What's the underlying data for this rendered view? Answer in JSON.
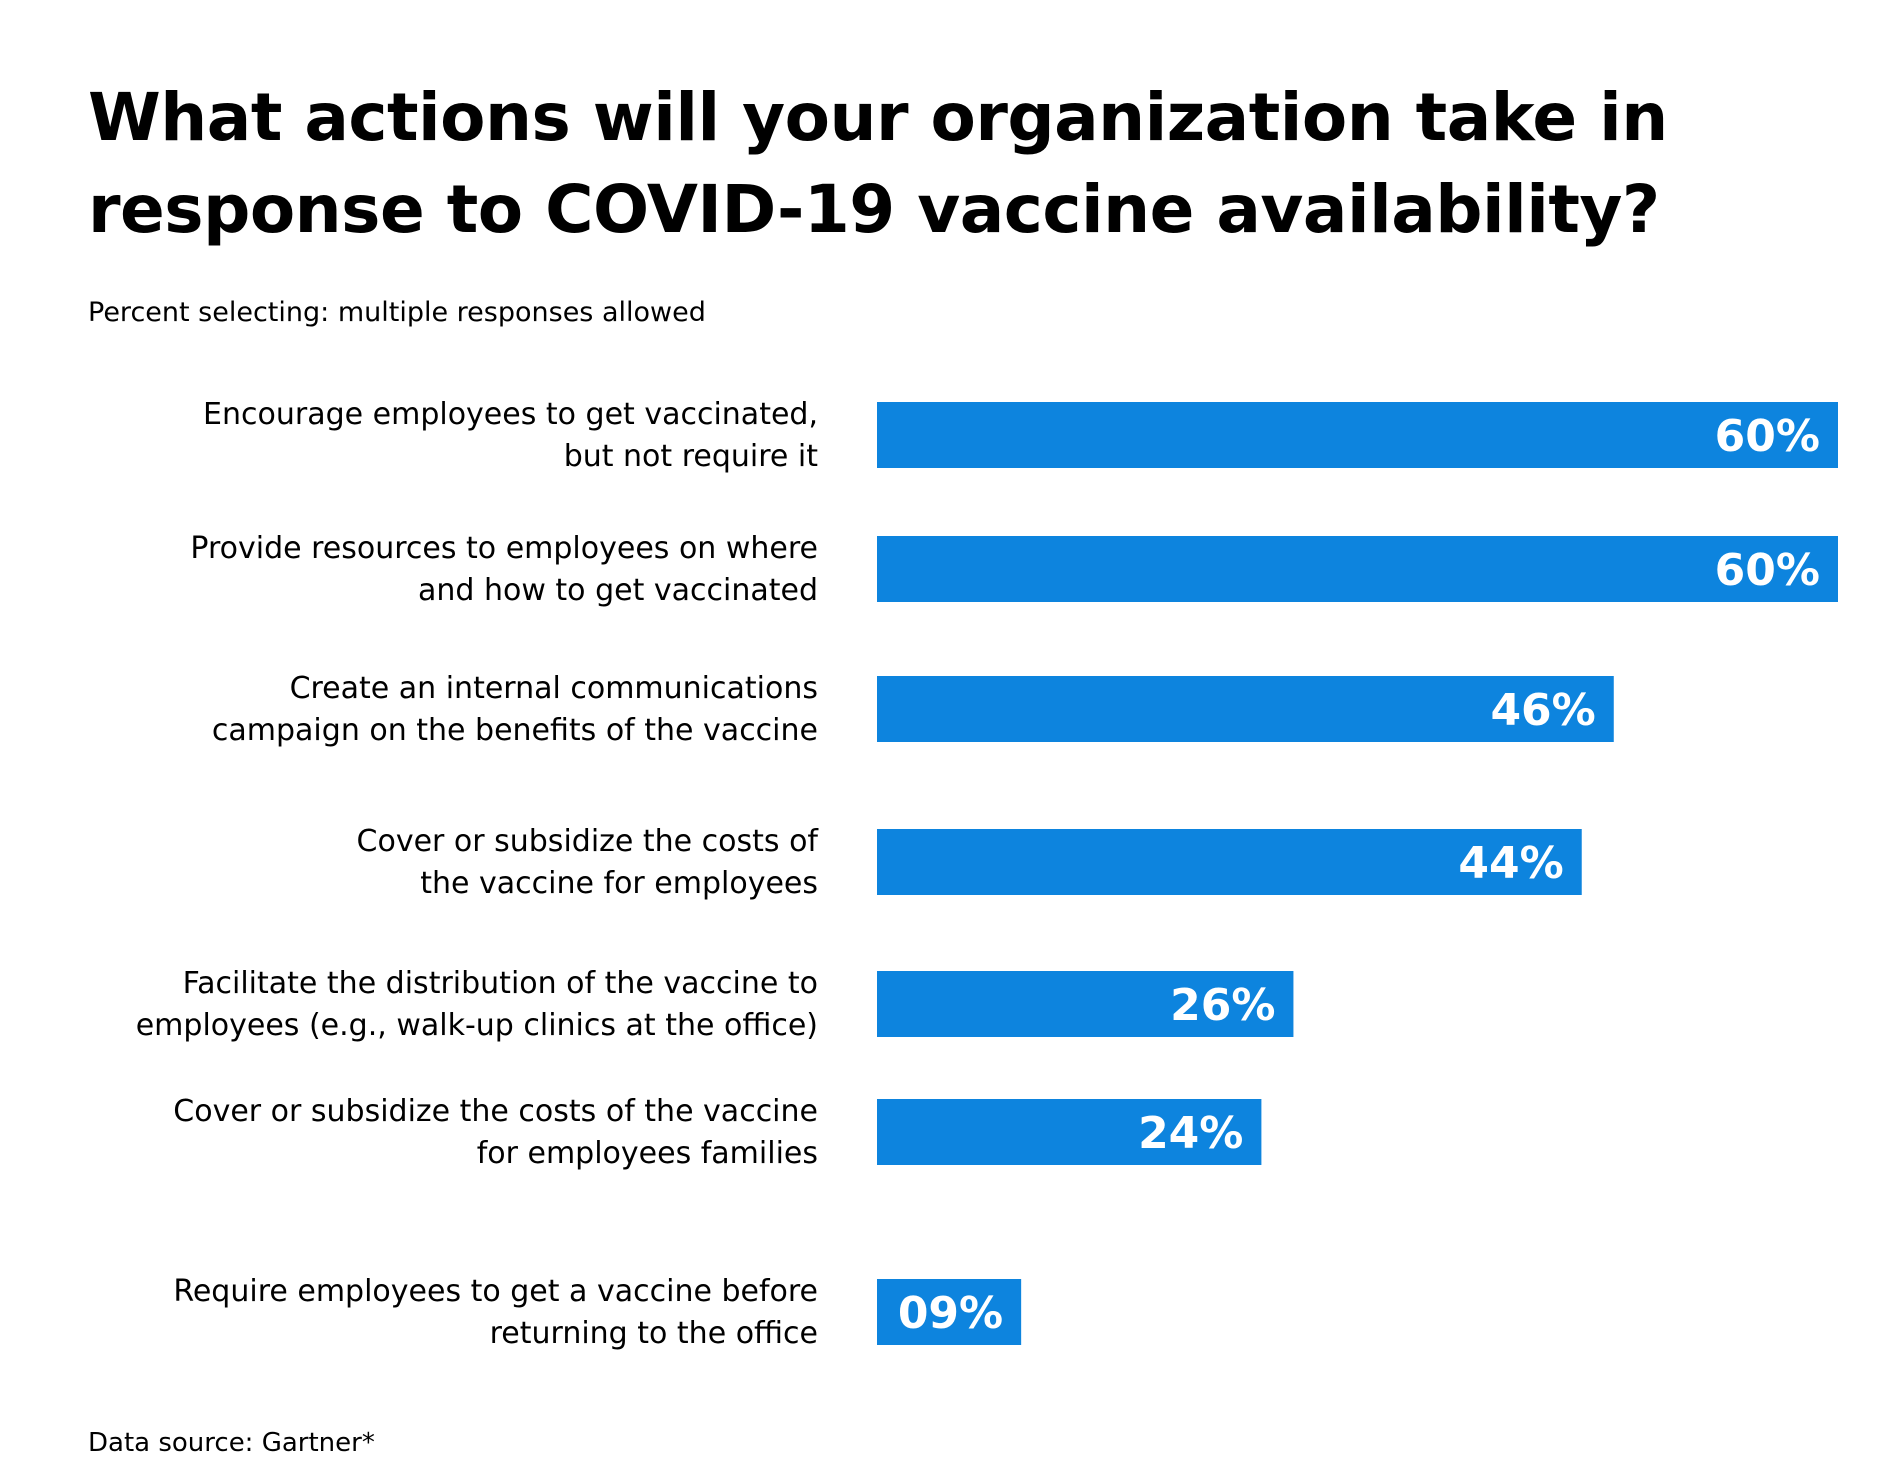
{
  "chart_data": {
    "type": "bar",
    "orientation": "horizontal",
    "title": "What actions will your organization take in response to COVID-19 vaccine availability?",
    "subtitle": "Percent selecting: multiple responses allowed",
    "source": "Data source: Gartner*",
    "categories": [
      [
        "Encourage employees to get vaccinated,",
        "but not require it"
      ],
      [
        "Provide resources to employees on where",
        "and how to get vaccinated"
      ],
      [
        "Create an internal communications",
        "campaign on the benefits of the vaccine"
      ],
      [
        "Cover or subsidize the costs of",
        "the vaccine for employees"
      ],
      [
        "Facilitate the distribution of the vaccine to",
        "employees (e.g., walk-up clinics at the office)"
      ],
      [
        "Cover or subsidize the costs of the vaccine",
        "for employees families"
      ],
      [
        "Require employees to get a vaccine before",
        "returning to the office"
      ]
    ],
    "values": [
      60,
      60,
      46,
      44,
      26,
      24,
      9
    ],
    "value_labels": [
      "60%",
      "60%",
      "46%",
      "44%",
      "26%",
      "24%",
      "09%"
    ],
    "bar_color": "#0d84de",
    "value_label_color": "#ffffff",
    "xlim": [
      0,
      60
    ],
    "grid": false,
    "legend": "none"
  }
}
